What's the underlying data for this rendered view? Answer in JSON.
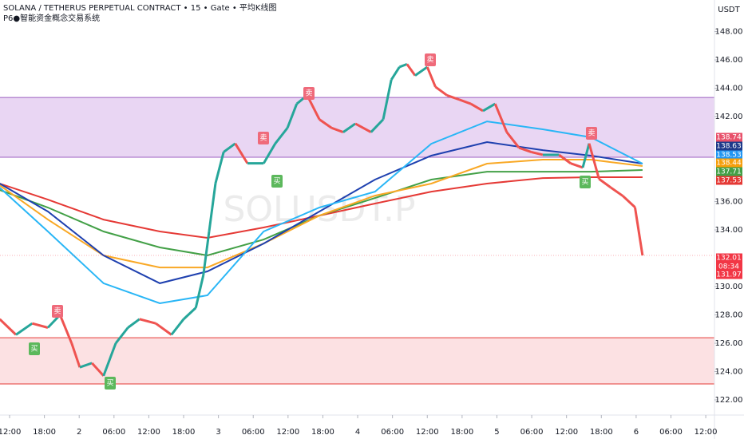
{
  "header": {
    "title": "SOLANA / TETHERUS PERPETUAL CONTRACT • 15 • Gate • 平均K线图",
    "indicator": "P6●智能资金概念交易系统",
    "currency": "USDT",
    "watermark": "SOLUSDT.P"
  },
  "chart_data": {
    "type": "line",
    "xlim": [
      -1.65,
      121.5
    ],
    "ylim": [
      120.93,
      150.23
    ],
    "xticks": [
      {
        "value": 0,
        "label": "12:00"
      },
      {
        "value": 6,
        "label": "18:00"
      },
      {
        "value": 12,
        "label": "2"
      },
      {
        "value": 18,
        "label": "06:00"
      },
      {
        "value": 24,
        "label": "12:00"
      },
      {
        "value": 30,
        "label": "18:00"
      },
      {
        "value": 36,
        "label": "3"
      },
      {
        "value": 42,
        "label": "06:00"
      },
      {
        "value": 48,
        "label": "12:00"
      },
      {
        "value": 54,
        "label": "18:00"
      },
      {
        "value": 60,
        "label": "4"
      },
      {
        "value": 66,
        "label": "06:00"
      },
      {
        "value": 72,
        "label": "12:00"
      },
      {
        "value": 78,
        "label": "18:00"
      },
      {
        "value": 84,
        "label": "5"
      },
      {
        "value": 90,
        "label": "06:00"
      },
      {
        "value": 96,
        "label": "12:00"
      },
      {
        "value": 102,
        "label": "18:00"
      },
      {
        "value": 108,
        "label": "6"
      },
      {
        "value": 114,
        "label": "06:00"
      },
      {
        "value": 120,
        "label": "12:00"
      }
    ],
    "yticks": [
      {
        "value": 122,
        "label": "122.00"
      },
      {
        "value": 124,
        "label": "124.00"
      },
      {
        "value": 126,
        "label": "126.00"
      },
      {
        "value": 128,
        "label": "128.00"
      },
      {
        "value": 130,
        "label": "130.00"
      },
      {
        "value": 134,
        "label": "134.00"
      },
      {
        "value": 136,
        "label": "136.00"
      },
      {
        "value": 142,
        "label": "142.00"
      },
      {
        "value": 144,
        "label": "144.00"
      },
      {
        "value": 146,
        "label": "146.00"
      },
      {
        "value": 148,
        "label": "148.00"
      }
    ],
    "price": {
      "up_color": "#26a69a",
      "down_color": "#ef5350",
      "x": [
        -1.7,
        1.1,
        3.9,
        6.6,
        8.7,
        10.7,
        12.1,
        14.2,
        16.2,
        18.3,
        20.4,
        22.4,
        25.2,
        27.9,
        30,
        32.1,
        33.4,
        34.4,
        35.5,
        36.9,
        38.9,
        41,
        43.8,
        45.8,
        47.9,
        49.5,
        51.3,
        53.4,
        55.5,
        57.5,
        59.6,
        62.3,
        64.4,
        65.8,
        67.2,
        68.5,
        69.9,
        72,
        73.4,
        75.4,
        77.5,
        79.5,
        81.6,
        83.7,
        85.7,
        87.8,
        89.9,
        91.9,
        94.7,
        96.7,
        98.8,
        99.9,
        101.6,
        103.6,
        105.7,
        107.8,
        109.1
      ],
      "values": [
        127.7,
        126.6,
        127.4,
        127.1,
        128,
        126,
        124.3,
        124.6,
        123.7,
        126,
        127.1,
        127.7,
        127.4,
        126.6,
        127.7,
        128.5,
        130.8,
        133.9,
        137.3,
        139.5,
        140.1,
        138.7,
        138.7,
        140.1,
        141.2,
        142.9,
        143.5,
        141.8,
        141.2,
        140.9,
        141.5,
        140.9,
        141.8,
        144.6,
        145.5,
        145.7,
        144.9,
        145.5,
        144.1,
        143.5,
        143.2,
        142.9,
        142.4,
        142.9,
        140.9,
        139.8,
        139.5,
        139.3,
        139.3,
        138.7,
        138.4,
        140.1,
        137.6,
        137,
        136.4,
        135.6,
        132.2
      ]
    },
    "ma_x": [
      -1.7,
      6.6,
      16.2,
      25.9,
      34.1,
      43.8,
      53.4,
      63,
      72.7,
      82.3,
      91.9,
      100.2,
      109.1
    ],
    "series": [
      {
        "color": "#e53935",
        "values": [
          137.27,
          136.14,
          134.73,
          133.89,
          133.44,
          134.17,
          135.01,
          135.86,
          136.7,
          137.27,
          137.66,
          137.72,
          137.72
        ]
      },
      {
        "color": "#43a047",
        "values": [
          136.82,
          135.58,
          133.89,
          132.76,
          132.2,
          133.32,
          135.01,
          136.25,
          137.55,
          138.11,
          138.11,
          138.11,
          138.23
        ]
      },
      {
        "color": "#f9a825",
        "values": [
          137.15,
          134.73,
          132.2,
          131.35,
          131.35,
          133.04,
          135.01,
          136.42,
          137.27,
          138.68,
          138.96,
          138.96,
          138.51
        ]
      },
      {
        "color": "#1e40af",
        "values": [
          137.27,
          135.3,
          132.2,
          130.23,
          131.07,
          133.04,
          135.3,
          137.55,
          139.24,
          140.2,
          139.63,
          139.24,
          138.68
        ]
      },
      {
        "color": "#29b6f6",
        "values": [
          136.99,
          133.89,
          130.23,
          128.82,
          129.38,
          133.89,
          135.58,
          136.7,
          140.08,
          141.66,
          141.1,
          140.54,
          138.68
        ]
      }
    ],
    "zones": [
      {
        "from": 139.13,
        "to": 143.35,
        "color": "#e1c8ef",
        "edge": "#9c5fc0"
      },
      {
        "from": 123.13,
        "to": 126.39,
        "color": "#fbd7d9",
        "edge": "#e53935"
      }
    ],
    "signals": [
      "卖",
      "卖",
      "卖",
      "卖",
      "卖",
      "买",
      "买",
      "买",
      "买"
    ],
    "price_tags": [
      {
        "value": 138.74,
        "color": "#e8506a"
      },
      {
        "value": 138.63,
        "color": "#1e3a8a"
      },
      {
        "value": 138.53,
        "color": "#2196f3"
      },
      {
        "value": 138.44,
        "color": "#f59e0b"
      },
      {
        "value": 137.71,
        "color": "#43a047"
      },
      {
        "value": 137.53,
        "color": "#e53935"
      },
      {
        "value": 132.01,
        "color": "#f23645"
      },
      {
        "value": 131.97,
        "color": "#f23645"
      }
    ],
    "countdown": "08:34"
  }
}
